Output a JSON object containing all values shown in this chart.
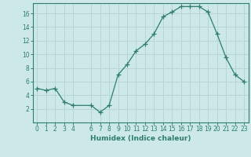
{
  "x": [
    0,
    1,
    2,
    3,
    4,
    6,
    7,
    8,
    9,
    10,
    11,
    12,
    13,
    14,
    15,
    16,
    17,
    18,
    19,
    20,
    21,
    22,
    23
  ],
  "y": [
    5.0,
    4.7,
    5.0,
    3.0,
    2.5,
    2.5,
    1.5,
    2.5,
    7.0,
    8.5,
    10.5,
    11.5,
    13.0,
    15.5,
    16.2,
    17.0,
    17.0,
    17.0,
    16.2,
    13.0,
    9.5,
    7.0,
    6.0
  ],
  "xlabel": "Humidex (Indice chaleur)",
  "xticks": [
    0,
    1,
    2,
    3,
    4,
    6,
    7,
    8,
    9,
    10,
    11,
    12,
    13,
    14,
    15,
    16,
    17,
    18,
    19,
    20,
    21,
    22,
    23
  ],
  "yticks": [
    2,
    4,
    6,
    8,
    10,
    12,
    14,
    16
  ],
  "ylim": [
    0,
    17.5
  ],
  "xlim": [
    -0.5,
    23.5
  ],
  "line_color": "#2e7d6e",
  "marker": "+",
  "marker_size": 4,
  "bg_color": "#cce8e8",
  "grid_color": "#b8d4d4",
  "tick_fontsize": 5.5,
  "xlabel_fontsize": 6.5
}
